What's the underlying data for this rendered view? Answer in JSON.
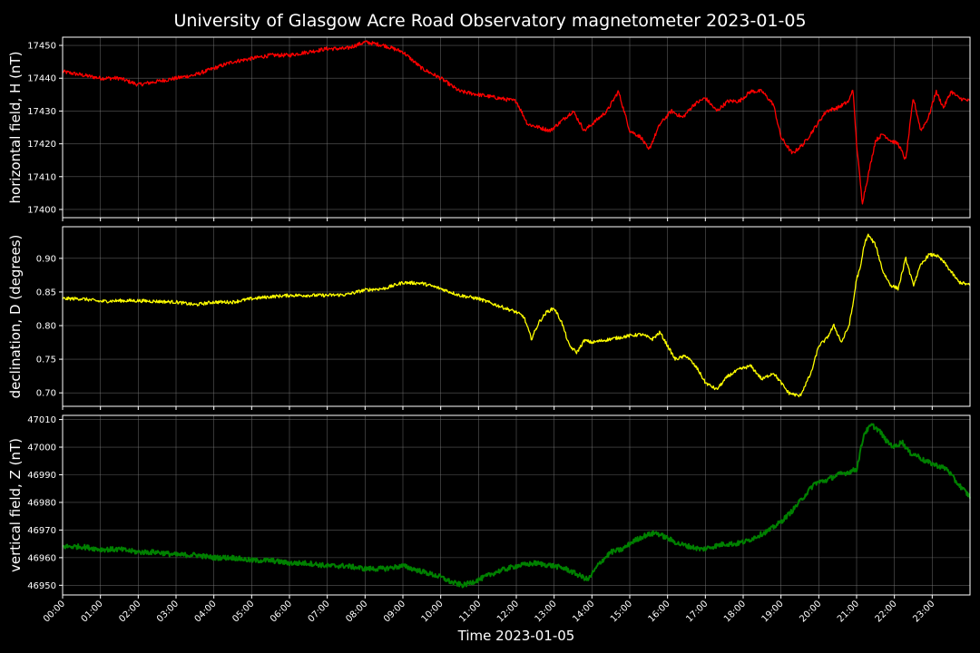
{
  "chart_data": {
    "type": "line",
    "title": "University of Glasgow Acre Road Observatory magnetometer 2023-01-05",
    "xlabel": "Time 2023-01-05",
    "x_ticks": [
      "00:00",
      "01:00",
      "02:00",
      "03:00",
      "04:00",
      "05:00",
      "06:00",
      "07:00",
      "08:00",
      "09:00",
      "10:00",
      "11:00",
      "12:00",
      "13:00",
      "14:00",
      "15:00",
      "16:00",
      "17:00",
      "18:00",
      "19:00",
      "20:00",
      "21:00",
      "22:00",
      "23:00"
    ],
    "xlim_hours": [
      0,
      24
    ],
    "grid": true,
    "panels": [
      {
        "name": "H",
        "ylabel": "horizontal field, H (nT)",
        "color": "#ff0000",
        "ylim": [
          17397.5,
          17452.5
        ],
        "yticks": [
          17400,
          17410,
          17420,
          17430,
          17440,
          17450
        ],
        "noise": 0.6,
        "x": [
          0,
          0.5,
          1,
          1.5,
          2,
          2.5,
          3,
          3.5,
          4,
          4.5,
          5,
          5.5,
          6,
          6.5,
          7,
          7.5,
          8,
          8.5,
          9,
          9.5,
          10,
          10.5,
          11,
          11.5,
          12,
          12.3,
          12.6,
          12.9,
          13.2,
          13.5,
          13.8,
          14.1,
          14.4,
          14.7,
          15,
          15.3,
          15.5,
          15.8,
          16.1,
          16.4,
          16.7,
          17,
          17.3,
          17.6,
          17.9,
          18.2,
          18.5,
          18.8,
          19,
          19.3,
          19.6,
          19.9,
          20.2,
          20.5,
          20.8,
          20.9,
          21,
          21.15,
          21.3,
          21.5,
          21.7,
          21.9,
          22.1,
          22.3,
          22.5,
          22.7,
          22.9,
          23.1,
          23.3,
          23.5,
          23.7,
          24
        ],
        "y": [
          17442,
          17441,
          17440,
          17440,
          17438,
          17439,
          17440,
          17441,
          17443,
          17445,
          17446,
          17447,
          17447,
          17448,
          17449,
          17449,
          17451,
          17450,
          17448,
          17443,
          17440,
          17436,
          17435,
          17434,
          17433,
          17426,
          17425,
          17424,
          17427,
          17430,
          17424,
          17427,
          17430,
          17436,
          17424,
          17422,
          17418,
          17426,
          17430,
          17428,
          17432,
          17434,
          17430,
          17433,
          17433,
          17436,
          17436,
          17432,
          17422,
          17417,
          17420,
          17425,
          17430,
          17431,
          17433,
          17437,
          17420,
          17402,
          17410,
          17421,
          17423,
          17421,
          17420,
          17415,
          17434,
          17424,
          17428,
          17436,
          17431,
          17436,
          17434,
          17433
        ]
      },
      {
        "name": "D",
        "ylabel": "declination, D (degrees)",
        "color": "#ffff00",
        "ylim": [
          0.68,
          0.947
        ],
        "yticks": [
          0.7,
          0.75,
          0.8,
          0.85,
          0.9
        ],
        "noise": 0.0025,
        "x": [
          0,
          0.5,
          1,
          1.5,
          2,
          2.5,
          3,
          3.5,
          4,
          4.5,
          5,
          5.5,
          6,
          6.5,
          7,
          7.5,
          8,
          8.5,
          9,
          9.5,
          10,
          10.5,
          11,
          11.5,
          12,
          12.2,
          12.4,
          12.6,
          12.8,
          13,
          13.2,
          13.4,
          13.6,
          13.8,
          14,
          14.5,
          15,
          15.3,
          15.6,
          15.8,
          16,
          16.2,
          16.5,
          16.8,
          17,
          17.3,
          17.6,
          17.9,
          18.2,
          18.5,
          18.8,
          19,
          19.2,
          19.5,
          19.8,
          20,
          20.2,
          20.4,
          20.6,
          20.8,
          20.9,
          21,
          21.1,
          21.2,
          21.3,
          21.5,
          21.7,
          21.9,
          22.1,
          22.3,
          22.5,
          22.7,
          22.9,
          23.1,
          23.3,
          23.5,
          23.7,
          24
        ],
        "y": [
          0.84,
          0.84,
          0.836,
          0.837,
          0.837,
          0.836,
          0.835,
          0.831,
          0.835,
          0.835,
          0.84,
          0.843,
          0.845,
          0.845,
          0.845,
          0.846,
          0.853,
          0.855,
          0.864,
          0.863,
          0.855,
          0.845,
          0.84,
          0.83,
          0.82,
          0.813,
          0.78,
          0.805,
          0.82,
          0.826,
          0.805,
          0.77,
          0.76,
          0.778,
          0.775,
          0.78,
          0.785,
          0.787,
          0.78,
          0.79,
          0.77,
          0.75,
          0.755,
          0.735,
          0.715,
          0.705,
          0.725,
          0.735,
          0.74,
          0.72,
          0.73,
          0.715,
          0.7,
          0.695,
          0.73,
          0.77,
          0.78,
          0.8,
          0.775,
          0.8,
          0.83,
          0.87,
          0.885,
          0.92,
          0.935,
          0.92,
          0.88,
          0.86,
          0.855,
          0.9,
          0.86,
          0.89,
          0.905,
          0.905,
          0.895,
          0.88,
          0.865,
          0.86
        ]
      },
      {
        "name": "Z",
        "ylabel": "vertical field, Z (nT)",
        "color": "#008000",
        "ylim": [
          46946.5,
          47011.5
        ],
        "yticks": [
          46950,
          46960,
          46970,
          46980,
          46990,
          47000,
          47010
        ],
        "noise": 0.9,
        "x": [
          0,
          0.5,
          1,
          1.5,
          2,
          2.5,
          3,
          3.5,
          4,
          4.5,
          5,
          5.5,
          6,
          6.5,
          7,
          7.5,
          8,
          8.5,
          9,
          9.5,
          10,
          10.3,
          10.6,
          11,
          11.5,
          12,
          12.5,
          13,
          13.3,
          13.6,
          13.9,
          14.2,
          14.5,
          14.8,
          15.1,
          15.4,
          15.7,
          16,
          16.3,
          16.6,
          16.9,
          17.2,
          17.5,
          17.8,
          18.1,
          18.4,
          18.7,
          19,
          19.3,
          19.6,
          19.9,
          20.2,
          20.5,
          20.8,
          21,
          21.2,
          21.4,
          21.6,
          21.8,
          22,
          22.2,
          22.4,
          22.6,
          22.8,
          23,
          23.2,
          23.4,
          23.6,
          23.8,
          24
        ],
        "y": [
          46964,
          46964,
          46963,
          46963,
          46962,
          46962,
          46961,
          46961,
          46960,
          46960,
          46959,
          46959,
          46958,
          46958,
          46957,
          46957,
          46956,
          46956,
          46957,
          46955,
          46953,
          46951,
          46950,
          46952,
          46955,
          46957,
          46958,
          46957,
          46956,
          46954,
          46952,
          46958,
          46962,
          46963,
          46966,
          46968,
          46969,
          46967,
          46965,
          46964,
          46963,
          46964,
          46965,
          46965,
          46966,
          46968,
          46970,
          46973,
          46977,
          46982,
          46987,
          46988,
          46990,
          46991,
          46992,
          47005,
          47008,
          47006,
          47002,
          47000,
          47002,
          46998,
          46997,
          46995,
          46994,
          46993,
          46992,
          46988,
          46985,
          46982
        ]
      }
    ]
  }
}
